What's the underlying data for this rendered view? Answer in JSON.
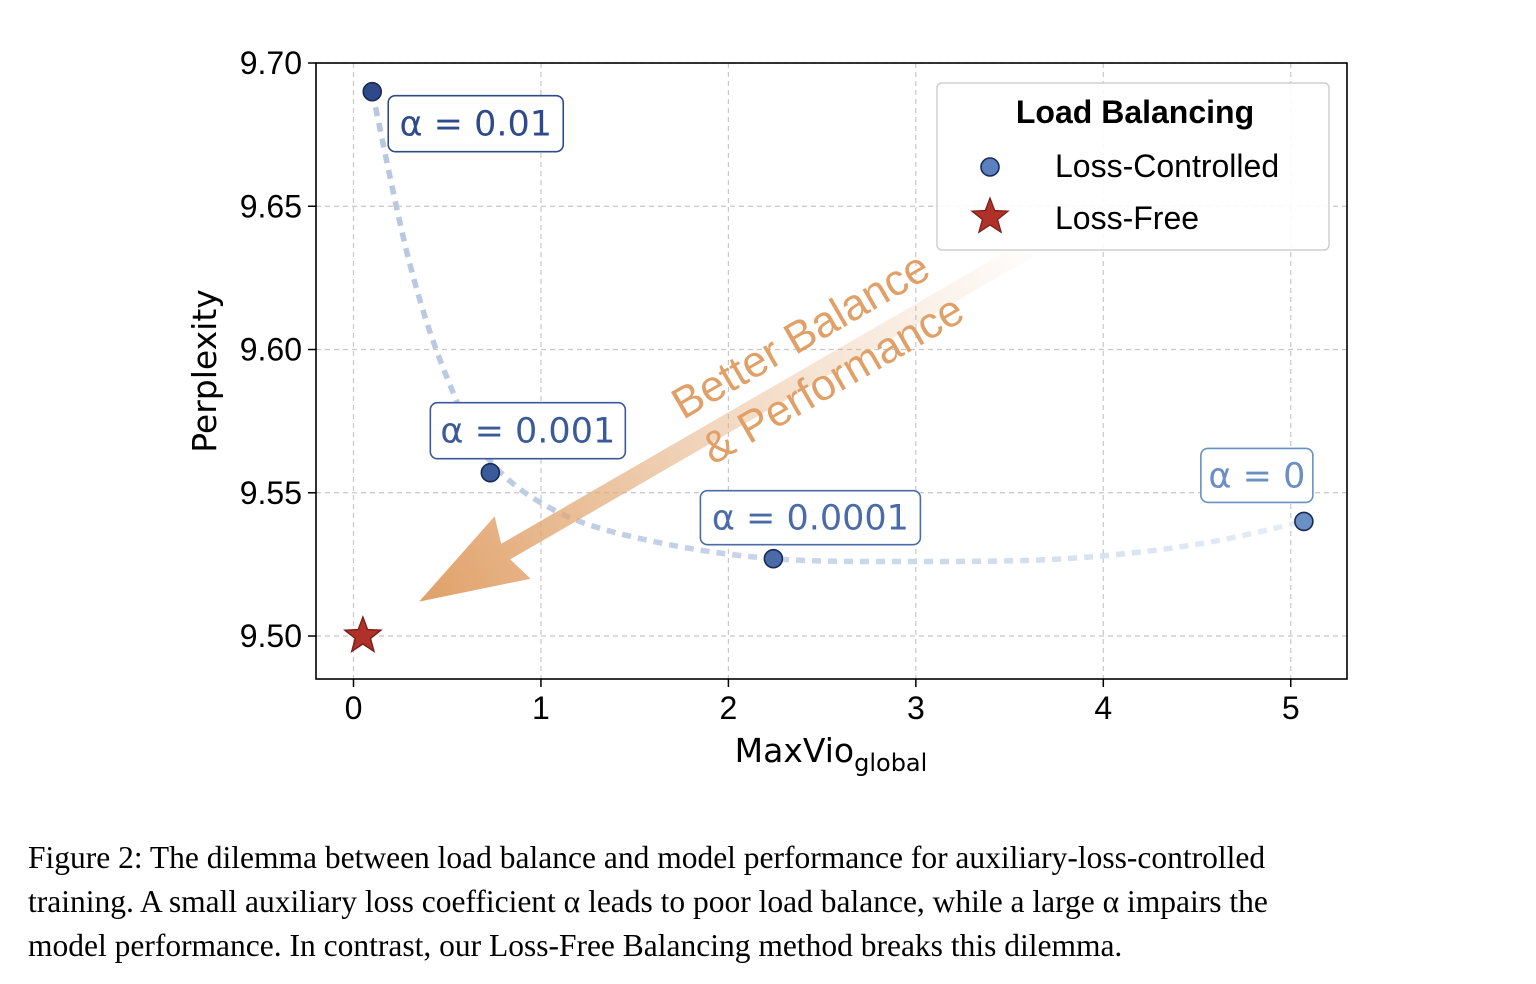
{
  "chart_data": {
    "type": "scatter",
    "xlabel": "MaxVio",
    "xlabel_subscript": "global",
    "ylabel": "Perplexity",
    "xlim": [
      -0.2,
      5.3
    ],
    "ylim": [
      9.485,
      9.7
    ],
    "x_ticks": [
      0,
      1,
      2,
      3,
      4,
      5
    ],
    "x_tick_labels": [
      "0",
      "1",
      "2",
      "3",
      "4",
      "5"
    ],
    "y_ticks": [
      9.5,
      9.55,
      9.6,
      9.65,
      9.7
    ],
    "y_tick_labels": [
      "9.50",
      "9.55",
      "9.60",
      "9.65",
      "9.70"
    ],
    "grid": true,
    "legend": {
      "title": "Load Balancing",
      "placement": "top-right",
      "entries": [
        "Loss-Controlled",
        "Loss-Free"
      ]
    },
    "series": [
      {
        "name": "Loss-Controlled",
        "marker": "circle",
        "points": [
          {
            "x": 0.1,
            "y": 9.69,
            "label": "α = 0.01",
            "color": "#2e4a8a"
          },
          {
            "x": 0.73,
            "y": 9.557,
            "label": "α = 0.001",
            "color": "#3a5a9a"
          },
          {
            "x": 2.24,
            "y": 9.527,
            "label": "α = 0.0001",
            "color": "#4a6aa8"
          },
          {
            "x": 5.07,
            "y": 9.54,
            "label": "α = 0",
            "color": "#6a8fc4"
          }
        ]
      },
      {
        "name": "Loss-Free",
        "marker": "star",
        "points": [
          {
            "x": 0.05,
            "y": 9.5,
            "color": "#b0302a"
          }
        ]
      }
    ],
    "trend_curve": {
      "style": "dashed",
      "color": "#c9d6ea",
      "points": [
        [
          0.1,
          9.69
        ],
        [
          0.3,
          9.63
        ],
        [
          0.5,
          9.59
        ],
        [
          0.73,
          9.561
        ],
        [
          1.1,
          9.543
        ],
        [
          1.6,
          9.533
        ],
        [
          2.24,
          9.527
        ],
        [
          3.0,
          9.526
        ],
        [
          3.8,
          9.527
        ],
        [
          4.5,
          9.532
        ],
        [
          5.07,
          9.54
        ]
      ]
    },
    "annotation_arrow": {
      "text_line1": "Better Balance",
      "text_line2": "&  Performance",
      "color": "#e0a068",
      "from": [
        3.6,
        9.635
      ],
      "to": [
        0.35,
        9.512
      ]
    }
  },
  "caption": {
    "lines": [
      "Figure 2: The dilemma between load balance and model performance for auxiliary-loss-controlled",
      "training. A small auxiliary loss coefficient α leads to poor load balance, while a large α impairs the",
      "model performance. In contrast, our Loss-Free Balancing method breaks this dilemma."
    ]
  }
}
